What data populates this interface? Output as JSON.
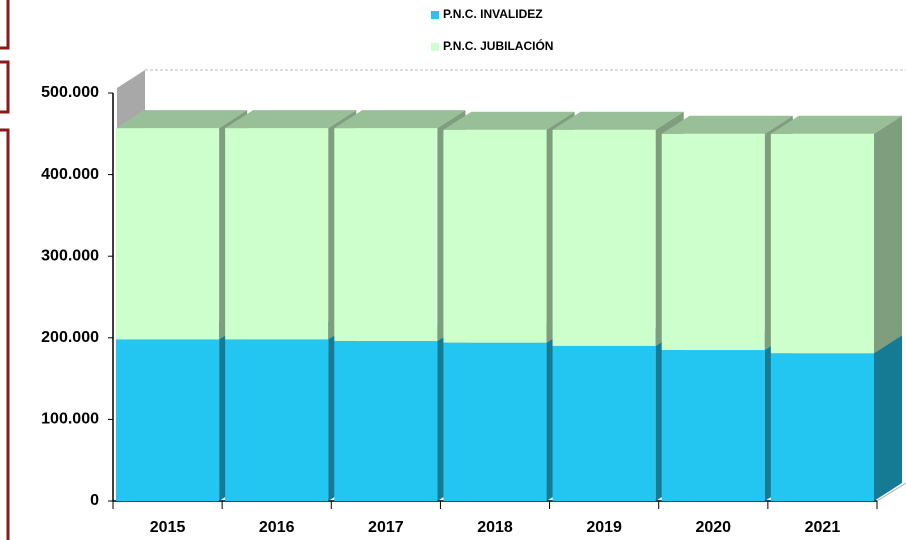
{
  "chart_data": {
    "type": "bar",
    "stacked": true,
    "categories": [
      "2015",
      "2016",
      "2017",
      "2018",
      "2019",
      "2020",
      "2021"
    ],
    "series": [
      {
        "name": "P.N.C. INVALIDEZ",
        "color": "#22c6f0",
        "values": [
          198000,
          198000,
          196000,
          194000,
          190000,
          185000,
          181000
        ]
      },
      {
        "name": "P.N.C. JUBILACIÓN",
        "color": "#ccffcc",
        "values": [
          259000,
          259000,
          261000,
          261000,
          265000,
          265000,
          269000
        ]
      }
    ],
    "ylim": [
      0,
      500000
    ],
    "yticks": [
      0,
      {
        "value": 100000,
        "label": "100.000"
      },
      {
        "value": 200000,
        "label": "200.000"
      },
      {
        "value": 300000,
        "label": "300.000"
      },
      {
        "value": 400000,
        "label": "400.000"
      },
      {
        "value": 500000,
        "label": "500.000"
      }
    ],
    "legend": "top"
  }
}
